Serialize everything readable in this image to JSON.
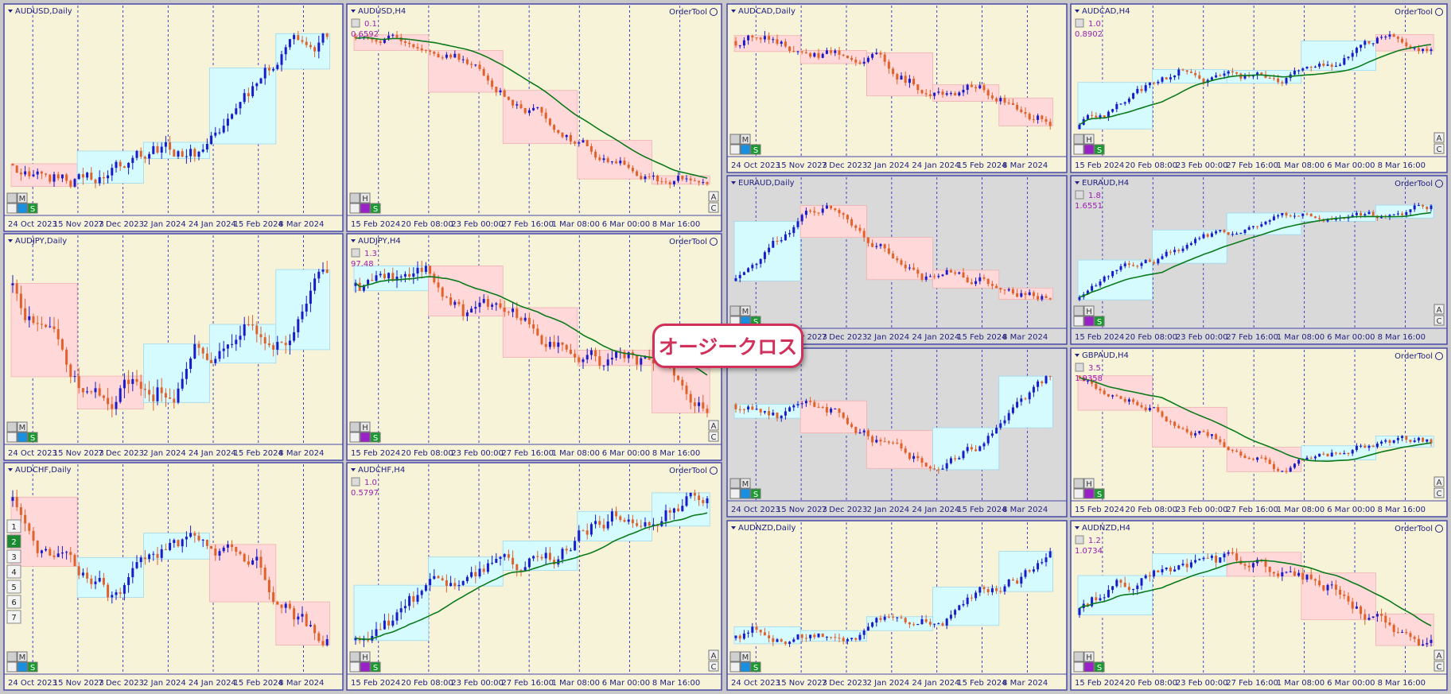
{
  "callout": "オージークロス",
  "order_tool": "OrderTool",
  "daily_dates": [
    "24 Oct 2023",
    "15 Nov 2023",
    "7 Dec 2023",
    "2 Jan 2024",
    "24 Jan 2024",
    "15 Feb 2024",
    "8 Mar 2024"
  ],
  "h4_dates": [
    "15 Feb 2024",
    "20 Feb 08:00",
    "23 Feb 00:00",
    "27 Feb 16:00",
    "1 Mar 08:00",
    "6 Mar 00:00",
    "8 Mar 16:00"
  ],
  "controls": [
    "M",
    "H",
    "S",
    "A",
    "C"
  ],
  "numbers": [
    "1",
    "2",
    "3",
    "4",
    "5",
    "6",
    "7"
  ],
  "panels": [
    {
      "title": "AUDUSD,Daily",
      "background": "#f6f3d9"
    },
    {
      "title": "AUDJPY,Daily",
      "background": "#f6f3d9"
    },
    {
      "title": "AUDCHF,Daily",
      "background": "#f6f3d9"
    },
    {
      "title": "AUDUSD,H4",
      "lot": "0.1",
      "price": "0.6592",
      "background": "#f6f3d9"
    },
    {
      "title": "AUDJPY,H4",
      "lot": "1.3",
      "price": "97.48",
      "background": "#f6f3d9"
    },
    {
      "title": "AUDCHF,H4",
      "lot": "1.0",
      "price": "0.5797",
      "background": "#f6f3d9"
    },
    {
      "title": "AUDCAD,Daily",
      "background": "#f6f3d9"
    },
    {
      "title": "EURAUD,Daily",
      "background": "#d9d9d9"
    },
    {
      "background": "#d9d9d9"
    },
    {
      "title": "AUDNZD,Daily",
      "background": "#f6f3d9"
    },
    {
      "title": "AUDCAD,H4",
      "lot": "1.0",
      "price": "0.8902",
      "background": "#f6f3d9"
    },
    {
      "title": "EURAUD,H4",
      "lot": "1.8",
      "price": "1.6551",
      "background": "#d9d9d9"
    },
    {
      "title": "GBPAUD,H4",
      "lot": "3.5",
      "price": "1.9358",
      "background": "#f6f3d9"
    },
    {
      "title": "AUDNZD,H4",
      "lot": "1.2",
      "price": "1.0734",
      "background": "#f6f3d9"
    }
  ]
}
